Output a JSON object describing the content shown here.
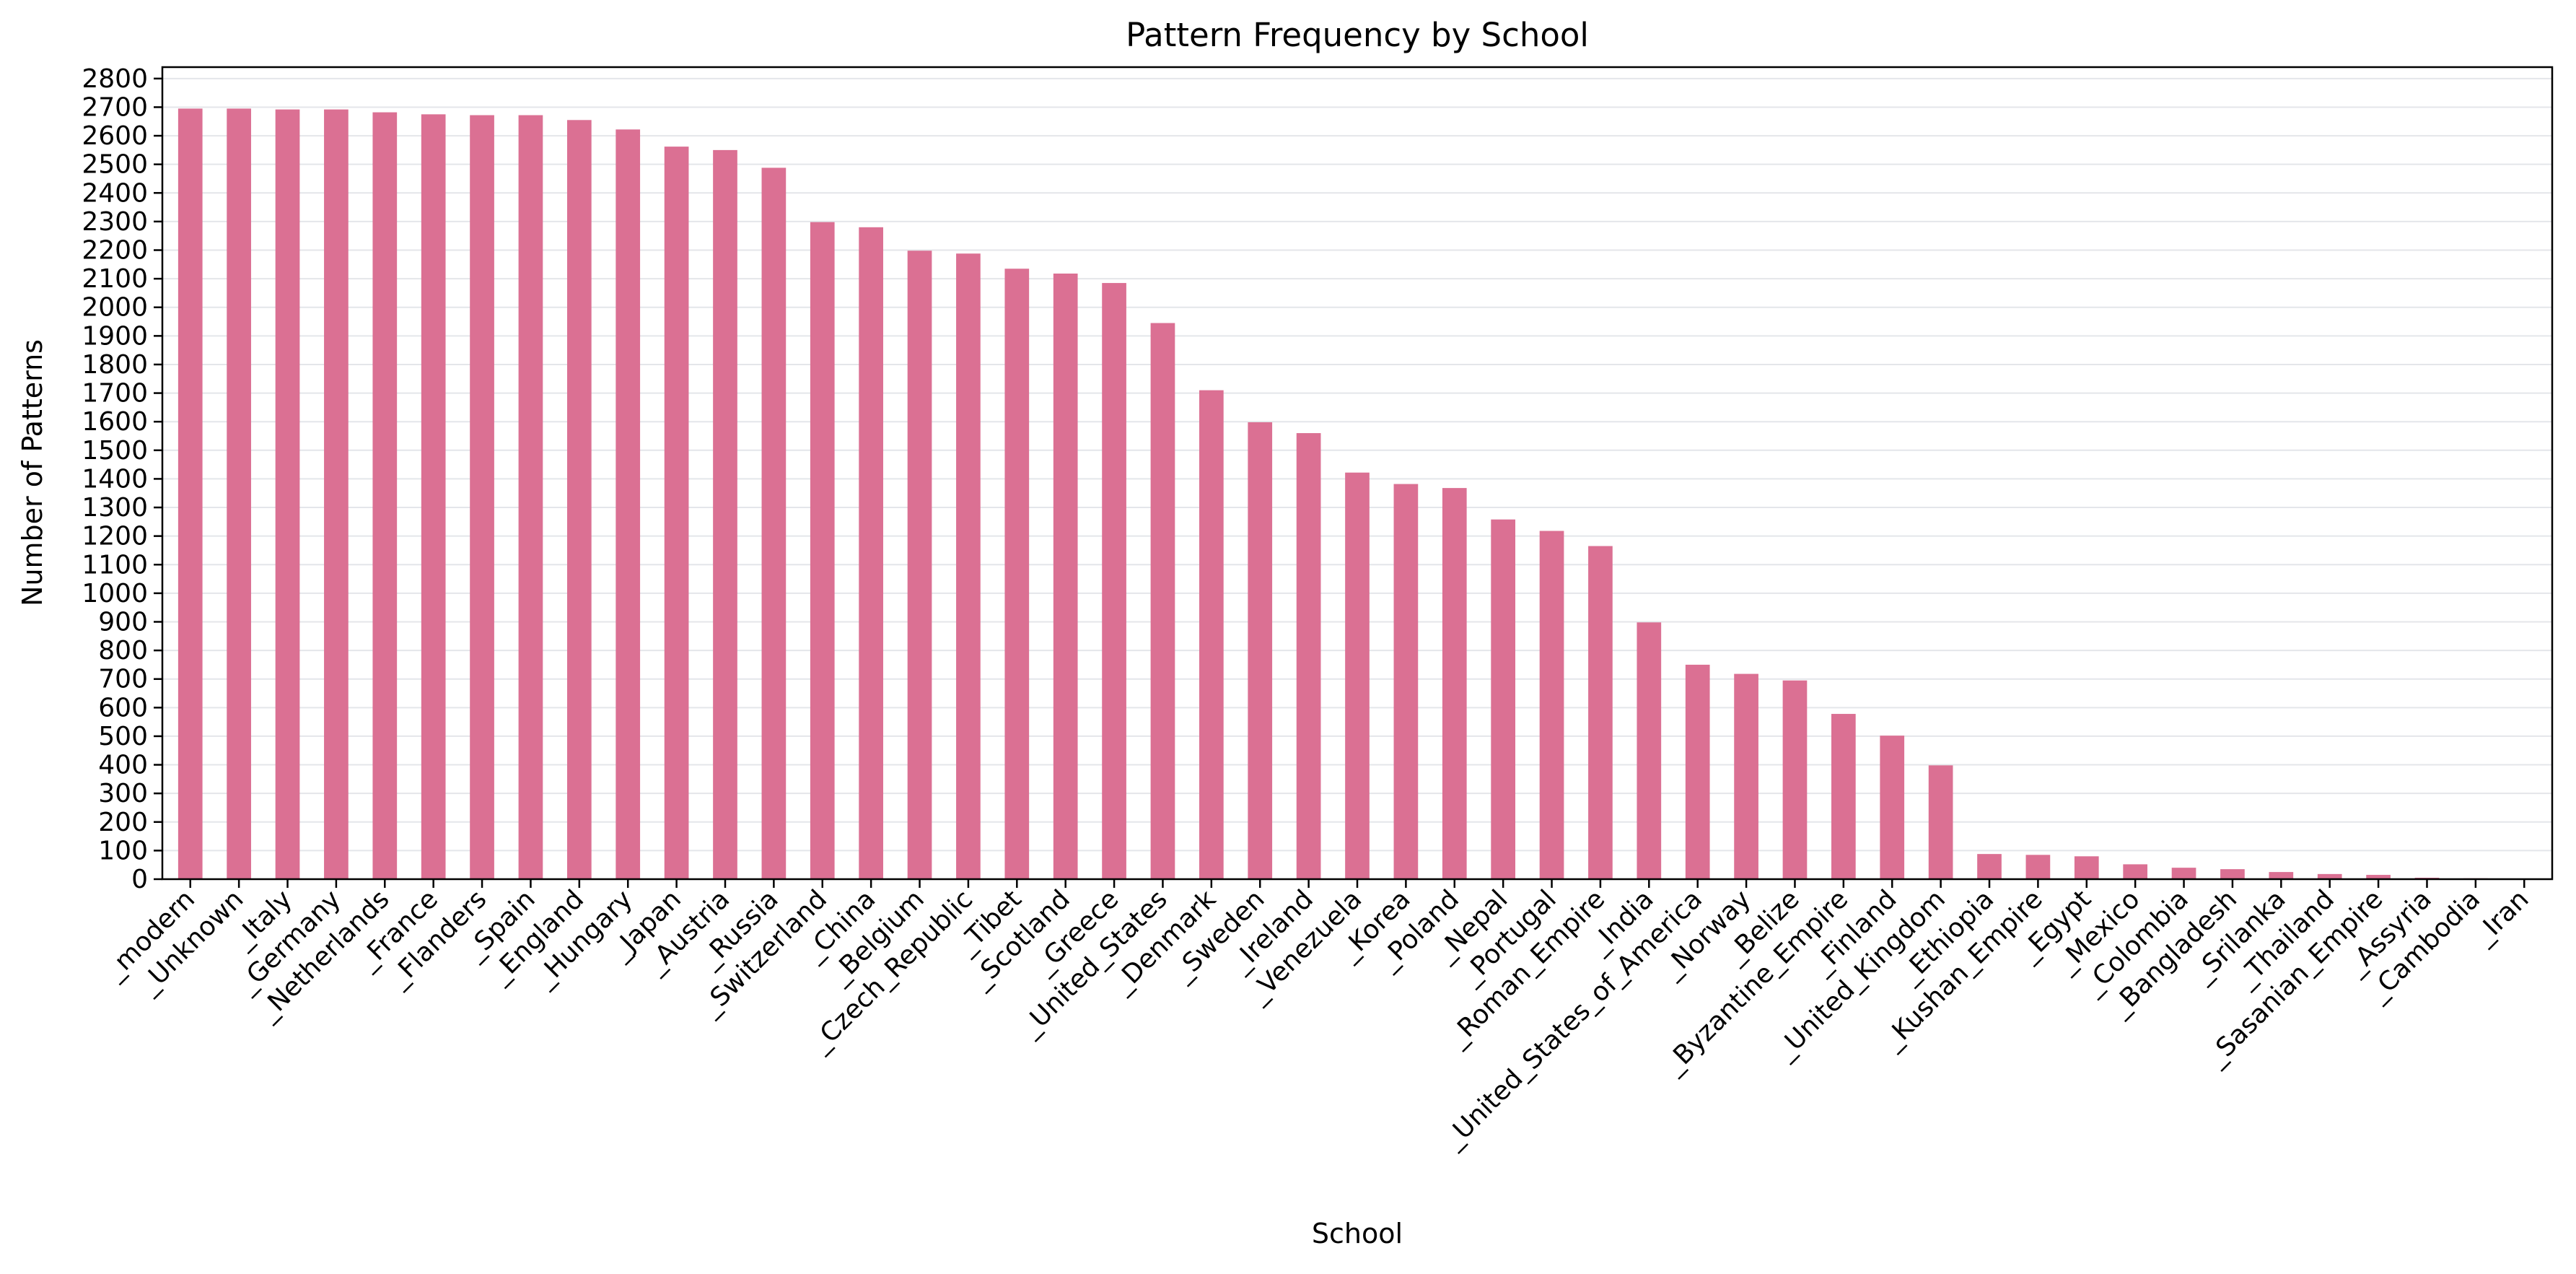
{
  "chart_data": {
    "type": "bar",
    "title": "Pattern Frequency by School",
    "xlabel": "School",
    "ylabel": "Number of Patterns",
    "categories": [
      "_modern",
      "_Unknown",
      "_Italy",
      "_Germany",
      "_Netherlands",
      "_France",
      "_Flanders",
      "_Spain",
      "_England",
      "_Hungary",
      "_Japan",
      "_Austria",
      "_Russia",
      "_Switzerland",
      "_China",
      "_Belgium",
      "_Czech_Republic",
      "_Tibet",
      "_Scotland",
      "_Greece",
      "_United_States",
      "_Denmark",
      "_Sweden",
      "_Ireland",
      "_Venezuela",
      "_Korea",
      "_Poland",
      "_Nepal",
      "_Portugal",
      "_Roman_Empire",
      "_India",
      "_United_States_of_America",
      "_Norway",
      "_Belize",
      "_Byzantine_Empire",
      "_Finland",
      "_United_Kingdom",
      "_Ethiopia",
      "_Kushan_Empire",
      "_Egypt",
      "_Mexico",
      "_Colombia",
      "_Bangladesh",
      "_Srilanka",
      "_Thailand",
      "_Sasanian_Empire",
      "_Assyria",
      "_Cambodia",
      "_Iran"
    ],
    "values": [
      2695,
      2695,
      2692,
      2692,
      2682,
      2675,
      2672,
      2672,
      2655,
      2622,
      2562,
      2550,
      2488,
      2298,
      2280,
      2198,
      2188,
      2135,
      2118,
      2085,
      1945,
      1710,
      1598,
      1560,
      1422,
      1382,
      1368,
      1258,
      1218,
      1165,
      898,
      750,
      718,
      695,
      578,
      502,
      398,
      88,
      85,
      80,
      52,
      40,
      35,
      25,
      18,
      15,
      5,
      3,
      2
    ],
    "ylim": [
      0,
      2840
    ],
    "yticks": [
      0,
      100,
      200,
      300,
      400,
      500,
      600,
      700,
      800,
      900,
      1000,
      1100,
      1200,
      1300,
      1400,
      1500,
      1600,
      1700,
      1800,
      1900,
      2000,
      2100,
      2200,
      2300,
      2400,
      2500,
      2600,
      2700,
      2800
    ],
    "grid": "y",
    "colors": {
      "bar": "#db7093",
      "grid": "#e4e6ea",
      "axis": "#000000"
    }
  }
}
